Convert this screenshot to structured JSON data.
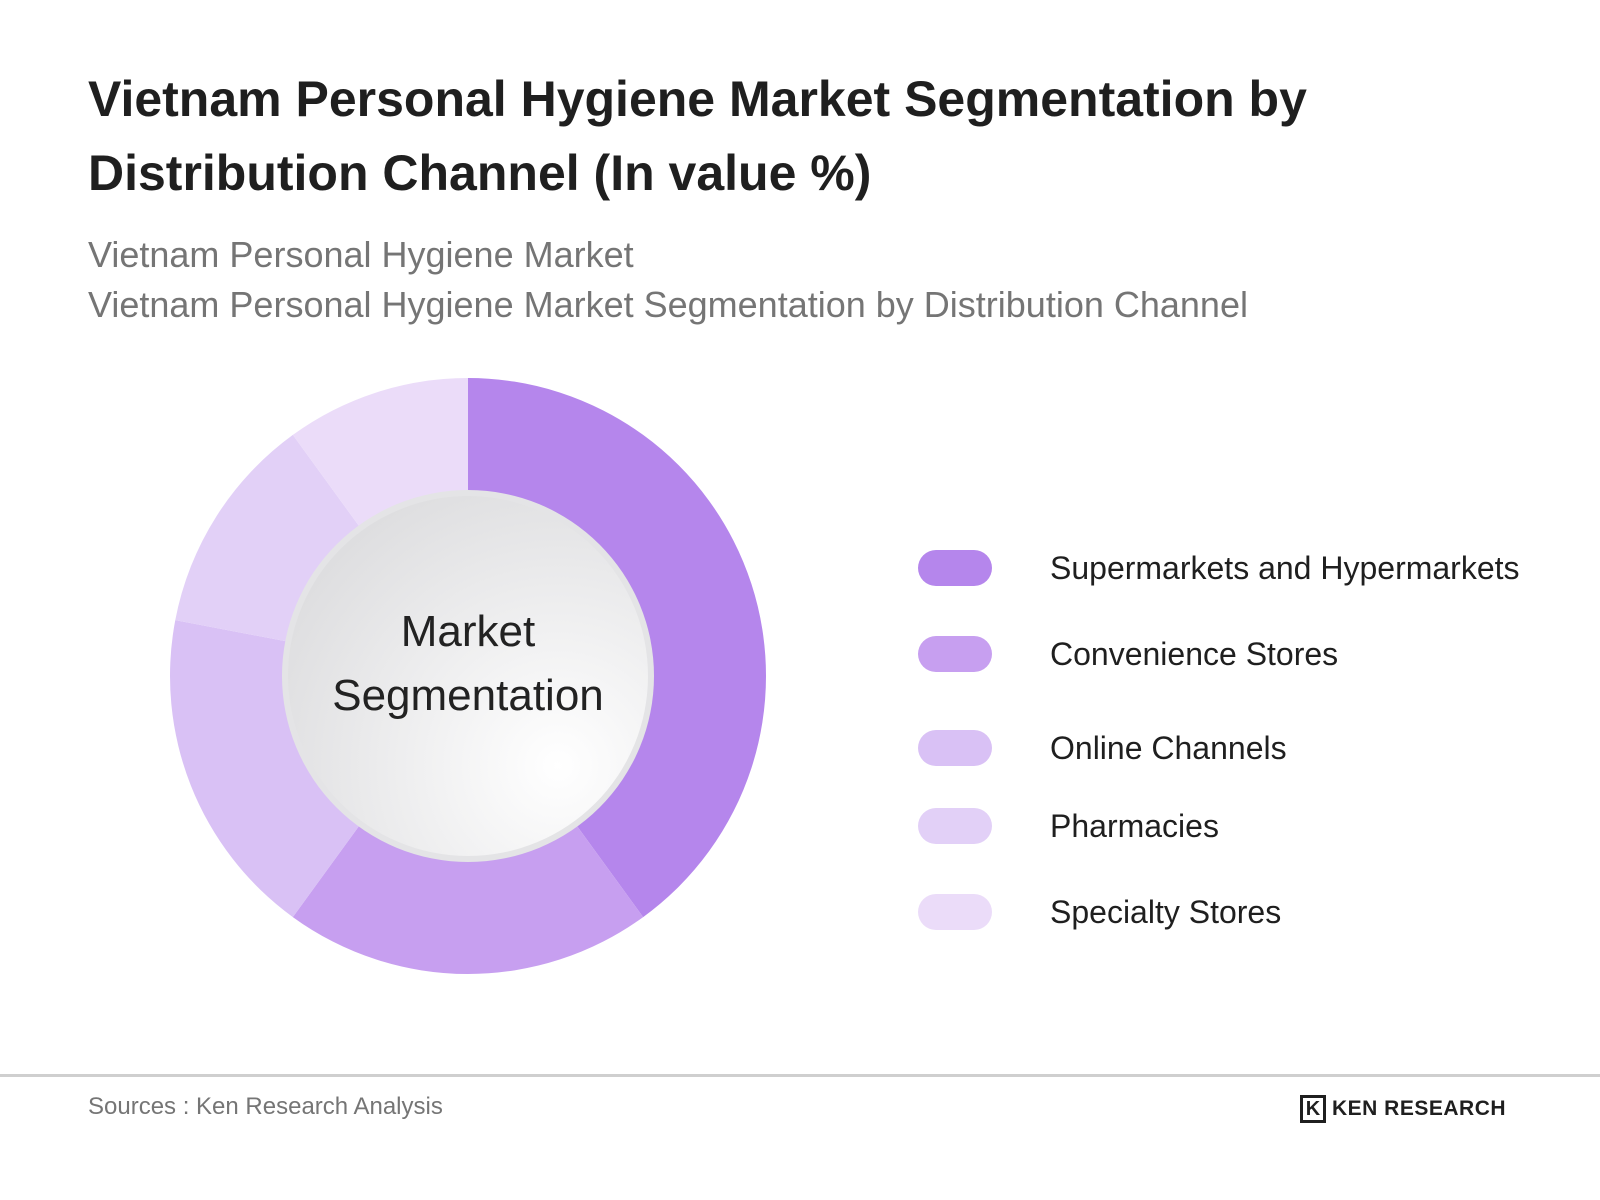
{
  "title": "Vietnam Personal Hygiene Market Segmentation by Distribution Channel (In value %)",
  "subtitle_line1": "Vietnam Personal Hygiene Market",
  "subtitle_line2": "Vietnam Personal Hygiene Market Segmentation by Distribution Channel",
  "center_label_line1": "Market",
  "center_label_line2": "Segmentation",
  "source": "Sources : Ken Research Analysis",
  "brand": {
    "mark": "K",
    "name": "KEN RESEARCH"
  },
  "chart_data": {
    "type": "pie",
    "title": "Vietnam Personal Hygiene Market Segmentation by Distribution Channel (In value %)",
    "categories": [
      "Supermarkets and Hypermarkets",
      "Convenience Stores",
      "Online Channels",
      "Pharmacies",
      "Specialty Stores"
    ],
    "values": [
      40,
      20,
      18,
      12,
      10
    ],
    "colors": [
      "#b586ec",
      "#c79ff0",
      "#d9c1f5",
      "#e2d0f7",
      "#ebdcf9"
    ],
    "legend_position": "right",
    "donut": true
  }
}
